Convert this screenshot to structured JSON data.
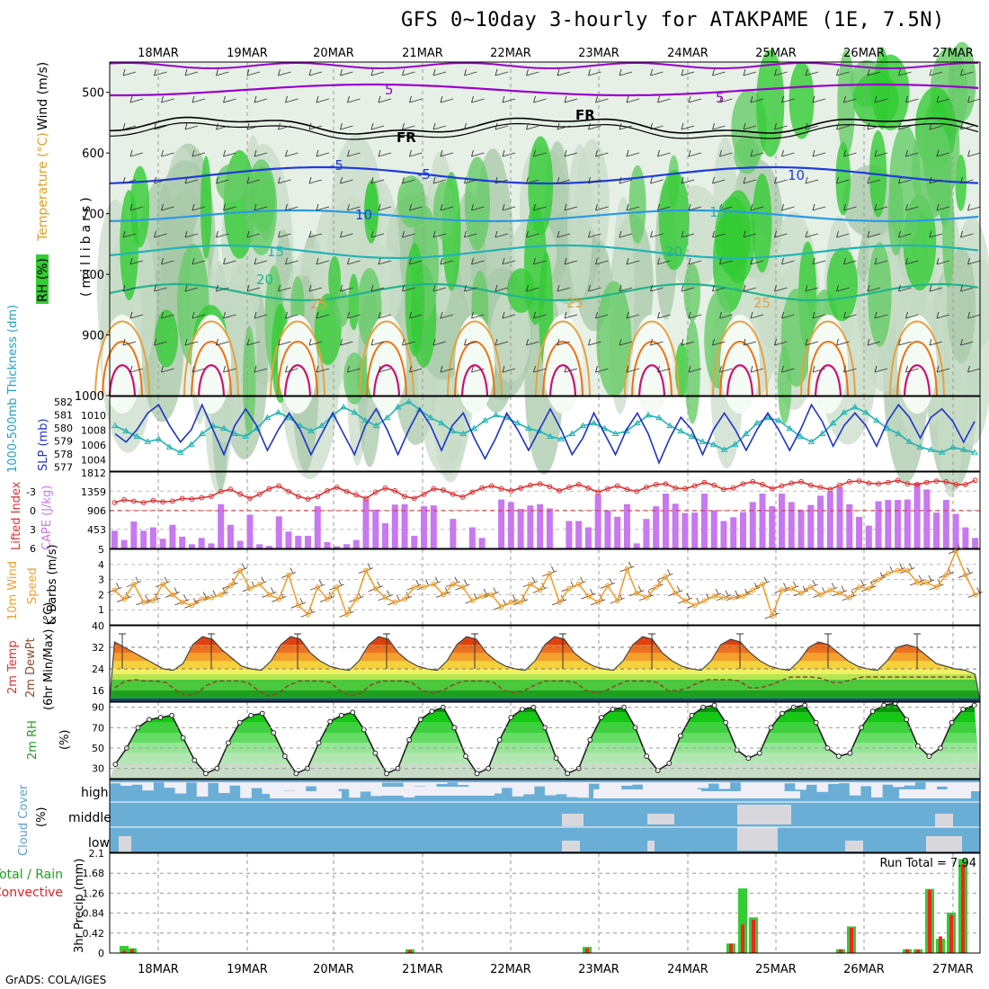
{
  "header": {
    "title": "GFS 0~10day 3-hourly for ATAKPAME (1E, 7.5N)"
  },
  "footer": {
    "credit": "GrADS: COLA/IGES"
  },
  "colors": {
    "rh_green": "#33cc33",
    "temp_purple": "#9900cc",
    "temp_blue": "#1e3cdc",
    "slp_dark": "#1e32c8",
    "thick_cyan": "#22b4b4",
    "cape": "#c878f0",
    "li_red": "#dc3232",
    "wind_orange": "#f0a030",
    "rain_green": "#33cc33",
    "conv_red": "#ff2020",
    "cloud_blue": "#6aaed6"
  },
  "chart_data": [
    {
      "type": "heatmap",
      "title": "GFS 0~10day 3-hourly for ATAKPAME (1E, 7.5N)",
      "ylabel": "(millibars)",
      "side_labels": [
        "RH (%)",
        "Temperature (°C)",
        "Wind (m/s)"
      ],
      "x_ticks": [
        "18MAR",
        "19MAR",
        "20MAR",
        "21MAR",
        "22MAR",
        "23MAR",
        "24MAR",
        "25MAR",
        "26MAR",
        "27MAR"
      ],
      "y_ticks": [
        "500",
        "600",
        "700",
        "800",
        "900",
        "1000"
      ],
      "ylim": [
        1000,
        450
      ],
      "contour_labels": [
        {
          "text": "5",
          "color": "purple"
        },
        {
          "text": "5",
          "color": "purple"
        },
        {
          "text": "FR",
          "color": "black"
        },
        {
          "text": "FR",
          "color": "black"
        },
        {
          "text": "-5",
          "color": "blue"
        },
        {
          "text": "-5",
          "color": "blue"
        },
        {
          "text": "10",
          "color": "blue"
        },
        {
          "text": "10",
          "color": "blue"
        },
        {
          "text": "15",
          "color": "teal"
        },
        {
          "text": "15",
          "color": "teal"
        },
        {
          "text": "20",
          "color": "green"
        },
        {
          "text": "20",
          "color": "green"
        },
        {
          "text": "25",
          "color": "orange"
        },
        {
          "text": "25",
          "color": "orange"
        },
        {
          "text": "25",
          "color": "orange"
        }
      ]
    },
    {
      "type": "line",
      "ylabel_left": "1000-500mb Thickness (dm)",
      "ylabel_right": "SLP (mb)",
      "left_ticks": [
        "582",
        "581",
        "580",
        "579",
        "578",
        "577"
      ],
      "right_ticks": [
        "1010",
        "1008",
        "1006",
        "1004"
      ],
      "series": [
        {
          "name": "SLP (mb)",
          "values": [
            1007.5,
            1006.5,
            1008,
            1010,
            1011,
            1008.5,
            1006.5,
            1008,
            1011,
            1008,
            1005,
            1008.5,
            1010.5,
            1008.5,
            1005.5,
            1008,
            1010,
            1008,
            1005,
            1007.5,
            1010,
            1007.5,
            1005,
            1008.5,
            1010.5,
            1008,
            1005,
            1008,
            1010.5,
            1008.5,
            1005.5,
            1008.5,
            1010,
            1007,
            1004.5,
            1007,
            1010,
            1008,
            1005.5,
            1008,
            1010.5,
            1008,
            1005,
            1007,
            1010,
            1007.5,
            1005,
            1008,
            1010,
            1007.5,
            1004,
            1007,
            1009.5,
            1008,
            1005,
            1008,
            1010,
            1008,
            1005.5,
            1008,
            1010,
            1008,
            1005.5,
            1008,
            1011,
            1009,
            1006,
            1008.5,
            1010,
            1008.5,
            1006,
            1009,
            1011,
            1009.5,
            1007,
            1009.5,
            1010.5,
            1009,
            1006.5,
            1009
          ]
        },
        {
          "name": "1000-500mb Thickness (dm)",
          "values": [
            580,
            579.6,
            579.2,
            578.8,
            579,
            578.4,
            578,
            578.6,
            579.4,
            580,
            579.8,
            579.4,
            579.2,
            579.8,
            580.6,
            581,
            580.6,
            580,
            579.6,
            580,
            580.8,
            581.4,
            581,
            580.4,
            580,
            580.6,
            581.4,
            581.8,
            581.2,
            580.6,
            580.2,
            579.6,
            579.4,
            579.8,
            580.4,
            580.8,
            580.6,
            580.2,
            579.8,
            579.6,
            579.2,
            579,
            579.4,
            580,
            580.2,
            579.8,
            579.4,
            579.6,
            580.2,
            580.8,
            580.6,
            580,
            579.6,
            579.2,
            578.8,
            578.6,
            578.2,
            578.6,
            579.4,
            580.2,
            580.6,
            580.4,
            579.8,
            579.2,
            578.8,
            579.4,
            580.2,
            581,
            581.4,
            581,
            580.4,
            579.8,
            579.4,
            578.8,
            578.4,
            578.2,
            578,
            578.4,
            578.2,
            578
          ]
        }
      ]
    },
    {
      "type": "bar",
      "ylabel_left": "Lifted Index",
      "ylabel_right": "CAPE (J/kg)",
      "left_ticks": [
        "-3",
        "0",
        "3",
        "6"
      ],
      "right_ticks": [
        "1812",
        "1359",
        "906",
        "453"
      ],
      "series": [
        {
          "name": "CAPE (J/kg)",
          "values": [
            420,
            200,
            640,
            420,
            500,
            230,
            560,
            280,
            100,
            250,
            120,
            1050,
            560,
            180,
            800,
            100,
            60,
            760,
            400,
            300,
            300,
            1000,
            150,
            50,
            100,
            200,
            1160,
            920,
            600,
            1040,
            1050,
            300,
            1000,
            1020,
            0,
            700,
            0,
            500,
            250,
            0,
            1160,
            1100,
            940,
            1020,
            1050,
            950,
            0,
            650,
            650,
            500,
            1280,
            900,
            750,
            1050,
            120,
            700,
            1000,
            1300,
            1060,
            840,
            850,
            1300,
            900,
            650,
            740,
            860,
            1100,
            1300,
            1000,
            1300,
            1100,
            920,
            1030,
            1250,
            1350,
            1450,
            1050,
            750,
            540,
            1120,
            1150,
            1150,
            1160,
            1560,
            1400,
            850,
            1150,
            820,
            500,
            250
          ]
        },
        {
          "name": "Lifted Index",
          "values": [
            -0.6,
            -1,
            -0.8,
            -0.6,
            -0.9,
            -0.7,
            -0.8,
            -1.2,
            -1.1,
            -1.3,
            -1.5,
            -2.2,
            -2.5,
            -1.8,
            -1.2,
            -1.8,
            -2.6,
            -3,
            -2.2,
            -1.5,
            -1.1,
            -1.5,
            -2.3,
            -2.8,
            -2.2,
            -1.7,
            -1.2,
            -2.1,
            -2.7,
            -2.3,
            -1.5,
            -1.2,
            -1.8,
            -2.6,
            -2.4,
            -1.8,
            -1.4,
            -2.1,
            -2.7,
            -3,
            -2.6,
            -2.3,
            -2.7,
            -3.1,
            -3.3,
            -2.9,
            -2.3,
            -2.8,
            -3.2,
            -2.7,
            -2.1,
            -2.6,
            -3,
            -2.5,
            -2.2,
            -2.8,
            -3.2,
            -3.3,
            -2.7,
            -2.6,
            -3,
            -3.5,
            -3.1,
            -2.5,
            -2.7,
            -3.3,
            -3.6,
            -3.2,
            -2.6,
            -3,
            -3.4,
            -3.6,
            -3.1,
            -2.8,
            -2.5,
            -3.1,
            -3.6,
            -3.7,
            -3.4,
            -3.3,
            -3.5,
            -3.8,
            -3.3,
            -3.2,
            -3.5,
            -3.7,
            -3.6,
            -3.2,
            -3.2,
            -3.8
          ]
        }
      ]
    },
    {
      "type": "line",
      "ylabel": "10m Wind Speed & Barbs (m/s)",
      "ylim": [
        0,
        5
      ],
      "y_ticks": [
        "5",
        "4",
        "3",
        "2",
        "1"
      ],
      "series": [
        {
          "name": "10m Wind Speed",
          "values": [
            2.3,
            1.7,
            2.7,
            1.5,
            1.6,
            2.7,
            2,
            1.5,
            1.3,
            1.7,
            1.8,
            2,
            2.6,
            3.6,
            2.4,
            2.7,
            2,
            1.7,
            3.3,
            1.3,
            0.7,
            2.5,
            1.7,
            2.5,
            0.7,
            1.7,
            3.6,
            2.4,
            1.8,
            1.5,
            1.7,
            2.5,
            2.5,
            2.7,
            2,
            2.7,
            2.5,
            1.6,
            1.9,
            2,
            1.2,
            1.5,
            1.5,
            2.7,
            2.3,
            3.4,
            1.5,
            2.4,
            2.7,
            1.9,
            1.5,
            2.6,
            1.6,
            3.7,
            2.1,
            1.8,
            2.5,
            3.2,
            2.1,
            1.6,
            1.3,
            1.6,
            1.9,
            1.8,
            1.8,
            1.9,
            2.3,
            2.7,
            0.6,
            2.3,
            2.4,
            2.1,
            2.5,
            2,
            2.3,
            2.1,
            1.8,
            2.5,
            2.4,
            3,
            3.4,
            3.6,
            3.6,
            2.8,
            2.8,
            2.5,
            3.3,
            4.9,
            3.3,
            2
          ]
        }
      ]
    },
    {
      "type": "area",
      "ylabel": "2m Temp 2m DewPt (6hr Min/Max) (°C)",
      "ylim": [
        12,
        40
      ],
      "y_ticks": [
        "40",
        "32",
        "24",
        "16"
      ],
      "series": [
        {
          "name": "2m Temp",
          "values": [
            34,
            32,
            30,
            28,
            26,
            24,
            23.5,
            26,
            33,
            36,
            35,
            31,
            28,
            25,
            24,
            23.5,
            27,
            33,
            36,
            35,
            30,
            27,
            25,
            24,
            23.5,
            27,
            33,
            36,
            35,
            30,
            27,
            25,
            24,
            23.5,
            27,
            33,
            36,
            35,
            30,
            27,
            25,
            24,
            23.5,
            27,
            33,
            36,
            35,
            30,
            27,
            25,
            24,
            23.5,
            27,
            33,
            36,
            35,
            30,
            27,
            25,
            24,
            23.5,
            27,
            33,
            35,
            34,
            30,
            27,
            25,
            24,
            23.5,
            27,
            32,
            34,
            33,
            30,
            27,
            25,
            24,
            23.5,
            27,
            32,
            33,
            32,
            29,
            26,
            25,
            24,
            23.5,
            22
          ]
        },
        {
          "name": "2m DewPt",
          "values": [
            17,
            19.5,
            20,
            19.5,
            19.5,
            19,
            16,
            14,
            15,
            18,
            19.5,
            19.5,
            19.5,
            19,
            16,
            14,
            15,
            18,
            19.5,
            19.5,
            19.5,
            19,
            16,
            14,
            15,
            18,
            19.5,
            19.5,
            19.5,
            19,
            16,
            15,
            16,
            18,
            19.5,
            19.5,
            19.5,
            19,
            16,
            15,
            16,
            18,
            19.5,
            19.5,
            19.5,
            19,
            16,
            15,
            16,
            18,
            19.5,
            19.5,
            19.5,
            19,
            16,
            16,
            17,
            19,
            20,
            20,
            20,
            19.5,
            17,
            17,
            18,
            19.5,
            21,
            21,
            21,
            20.5,
            19,
            19,
            20,
            21,
            21,
            21,
            21,
            21,
            21,
            21,
            21,
            21,
            21,
            21,
            21
          ]
        }
      ]
    },
    {
      "type": "area",
      "ylabel": "2m RH (%)",
      "ylim": [
        20,
        95
      ],
      "y_ticks": [
        "90",
        "70",
        "50",
        "30"
      ],
      "series": [
        {
          "name": "2m RH",
          "values": [
            34,
            50,
            70,
            78,
            80,
            82,
            60,
            38,
            25,
            30,
            55,
            75,
            82,
            84,
            65,
            42,
            25,
            30,
            55,
            76,
            82,
            85,
            68,
            45,
            25,
            30,
            58,
            78,
            86,
            90,
            70,
            42,
            25,
            30,
            58,
            80,
            88,
            90,
            70,
            40,
            25,
            30,
            58,
            80,
            88,
            90,
            70,
            42,
            28,
            35,
            62,
            82,
            90,
            92,
            75,
            48,
            40,
            45,
            70,
            84,
            90,
            92,
            75,
            50,
            42,
            45,
            70,
            86,
            92,
            94,
            78,
            52,
            42,
            50,
            75,
            88,
            92
          ]
        }
      ]
    },
    {
      "type": "heatmap",
      "ylabel": "Cloud Cover (%)",
      "y_categories": [
        "high",
        "middle",
        "low"
      ]
    },
    {
      "type": "bar",
      "ylabel": "3hr Precip (mm)",
      "side_labels": [
        "Total / Rain",
        "Convective"
      ],
      "annotation": "Run Total = 7.94",
      "ylim": [
        0,
        2.1
      ],
      "y_ticks": [
        "2.1",
        "1.68",
        "1.26",
        "0.84",
        "0.42",
        "0"
      ],
      "x_ticks": [
        "18MAR",
        "19MAR",
        "20MAR",
        "21MAR",
        "22MAR",
        "23MAR",
        "24MAR",
        "25MAR",
        "26MAR",
        "27MAR"
      ],
      "series": [
        {
          "name": "Total / Rain",
          "values": [
            0.15,
            0.1,
            0,
            0,
            0,
            0,
            0,
            0,
            0,
            0,
            0,
            0,
            0.08,
            0,
            0,
            0,
            0,
            0,
            0,
            0,
            0,
            0.13,
            0,
            0,
            0,
            0,
            0,
            0,
            0,
            0,
            0.2,
            1.36,
            0.75,
            0,
            0,
            0,
            0,
            0,
            0,
            0,
            0,
            0.08,
            0.56,
            0,
            0,
            0,
            0,
            0.08,
            0.08,
            1.35,
            0.3,
            0.85,
            1.98
          ]
        },
        {
          "name": "Convective",
          "values": [
            0.05,
            0.08,
            0,
            0,
            0,
            0,
            0,
            0,
            0,
            0,
            0,
            0,
            0.06,
            0,
            0,
            0,
            0,
            0,
            0,
            0,
            0,
            0.1,
            0,
            0,
            0,
            0,
            0,
            0,
            0,
            0,
            0.2,
            0.6,
            0.7,
            0,
            0,
            0,
            0,
            0,
            0,
            0,
            0,
            0.08,
            0.53,
            0,
            0,
            0,
            0,
            0.08,
            0.07,
            1.33,
            0.35,
            0.8,
            1.87
          ]
        }
      ]
    }
  ]
}
